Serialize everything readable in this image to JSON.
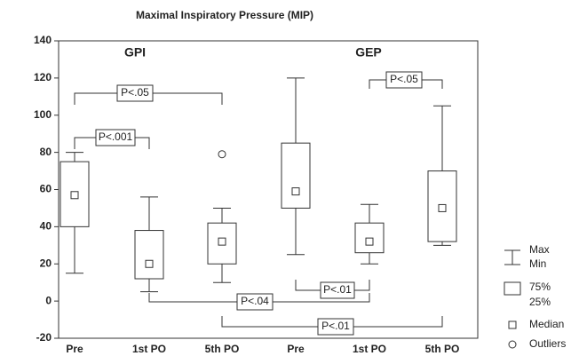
{
  "chart_data": {
    "type": "box",
    "title": "Maximal Inspiratory Pressure (MIP)",
    "group_labels": [
      "GPI",
      "GEP"
    ],
    "categories": [
      "Pre",
      "1st PO",
      "5th PO",
      "Pre",
      "1st PO",
      "5th PO"
    ],
    "max": [
      80,
      56,
      50,
      120,
      52,
      105
    ],
    "q3": [
      75,
      38,
      42,
      85,
      42,
      70
    ],
    "median": [
      57,
      20,
      32,
      59,
      32,
      50
    ],
    "q1": [
      40,
      12,
      20,
      50,
      26,
      32
    ],
    "min": [
      15,
      5,
      10,
      25,
      20,
      30
    ],
    "outliers": [
      [],
      [],
      [
        79
      ],
      [],
      [],
      []
    ],
    "ylim": [
      -20,
      140
    ],
    "yticks": [
      -20,
      0,
      20,
      40,
      60,
      80,
      100,
      120,
      140
    ],
    "annotations": [
      "P<.05",
      "P<.001",
      "P<.05",
      "P<.01",
      "P<.04",
      "P<.01"
    ],
    "legend": [
      "Max",
      "Min",
      "75%",
      "25%",
      "Median",
      "Outliers"
    ]
  }
}
